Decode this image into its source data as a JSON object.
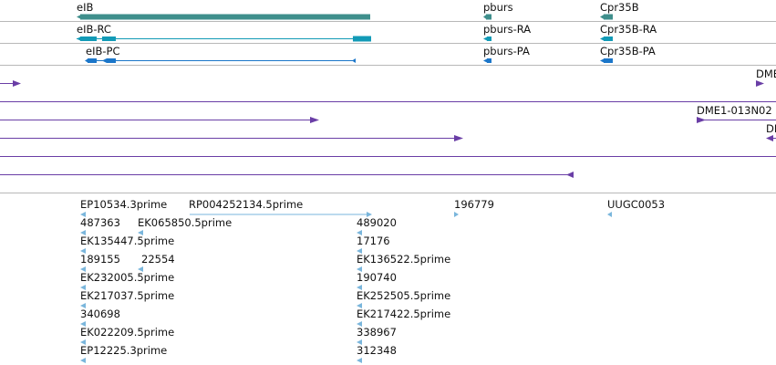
{
  "colors": {
    "gene": "#3f8f8c",
    "transcript_cds": "#129ab6",
    "transcript_pc": "#1b76c9",
    "aligned": "#6a3ea6",
    "est": "#7ab6dc",
    "separator": "#b8b8b8"
  },
  "genes": {
    "eib": "eIB",
    "pburs": "pburs",
    "cpr35b": "Cpr35B"
  },
  "transcripts": {
    "eib_rc": "eIB-RC",
    "eib_pc": "eIB-PC",
    "pburs_ra": "pburs-RA",
    "pburs_pa": "pburs-PA",
    "cpr35b_ra": "Cpr35B-RA",
    "cpr35b_pa": "Cpr35B-PA"
  },
  "aligned_features": {
    "dme_top": "DME",
    "dme1": "DME1-013N02",
    "dme_right": "DI"
  },
  "est_features": {
    "ep10534": "EP10534.3prime",
    "rp004252134": "RP004252134.5prime",
    "f196779": "196779",
    "uugc0053": "UUGC0053",
    "f487363": "487363",
    "ek065850": "EK065850.5prime",
    "f489020": "489020",
    "ek135447": "EK135447.5prime",
    "f17176": "17176",
    "f189155": "189155",
    "f22554": "22554",
    "ek136522": "EK136522.5prime",
    "ek232005": "EK232005.5prime",
    "f190740": "190740",
    "ek217037": "EK217037.5prime",
    "ek252505": "EK252505.5prime",
    "f340698": "340698",
    "ek217422": "EK217422.5prime",
    "ek022209": "EK022209.5prime",
    "f338967": "338967",
    "ep12225": "EP12225.3prime",
    "f312348": "312348"
  }
}
